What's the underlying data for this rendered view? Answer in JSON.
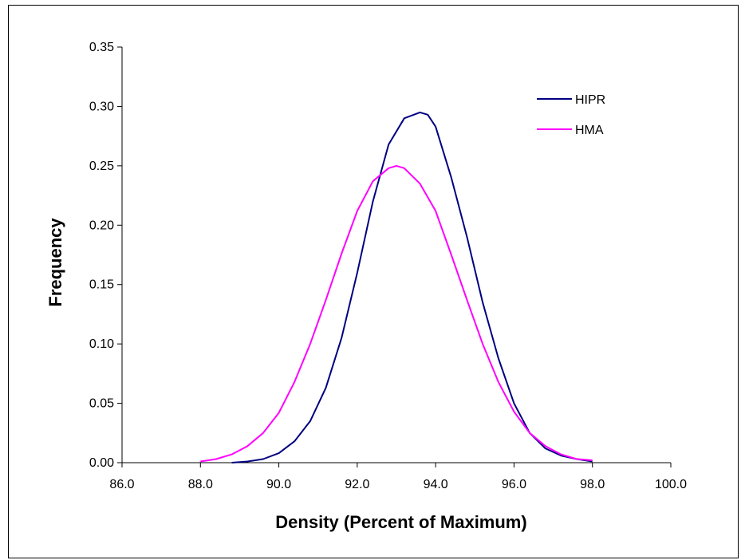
{
  "chart_data": {
    "type": "line",
    "title": "",
    "xlabel": "Density (Percent of Maximum)",
    "ylabel": "Frequency",
    "xlim": [
      86.0,
      100.0
    ],
    "ylim": [
      0.0,
      0.35
    ],
    "x_ticks": [
      "86.0",
      "88.0",
      "90.0",
      "92.0",
      "94.0",
      "96.0",
      "98.0",
      "100.0"
    ],
    "y_ticks": [
      "0.00",
      "0.05",
      "0.10",
      "0.15",
      "0.20",
      "0.25",
      "0.30",
      "0.35"
    ],
    "grid": false,
    "legend_position": "top-right",
    "series": [
      {
        "name": "HIPR",
        "color": "#000080",
        "x": [
          88.8,
          89.2,
          89.6,
          90.0,
          90.4,
          90.8,
          91.2,
          91.6,
          92.0,
          92.4,
          92.8,
          93.2,
          93.6,
          93.8,
          94.0,
          94.4,
          94.8,
          95.2,
          95.6,
          96.0,
          96.4,
          96.8,
          97.2,
          97.6,
          98.0
        ],
        "y": [
          0.0,
          0.001,
          0.003,
          0.008,
          0.018,
          0.035,
          0.063,
          0.105,
          0.16,
          0.22,
          0.268,
          0.29,
          0.295,
          0.293,
          0.283,
          0.24,
          0.19,
          0.135,
          0.088,
          0.05,
          0.025,
          0.012,
          0.006,
          0.003,
          0.001
        ]
      },
      {
        "name": "HMA",
        "color": "#ff00ff",
        "x": [
          88.0,
          88.4,
          88.8,
          89.2,
          89.6,
          90.0,
          90.4,
          90.8,
          91.2,
          91.6,
          92.0,
          92.4,
          92.8,
          93.0,
          93.2,
          93.6,
          94.0,
          94.4,
          94.8,
          95.2,
          95.6,
          96.0,
          96.4,
          96.8,
          97.2,
          97.6,
          98.0
        ],
        "y": [
          0.001,
          0.003,
          0.007,
          0.014,
          0.025,
          0.042,
          0.068,
          0.1,
          0.137,
          0.176,
          0.212,
          0.237,
          0.248,
          0.25,
          0.248,
          0.235,
          0.212,
          0.175,
          0.137,
          0.1,
          0.068,
          0.043,
          0.025,
          0.014,
          0.007,
          0.003,
          0.002
        ]
      }
    ]
  }
}
